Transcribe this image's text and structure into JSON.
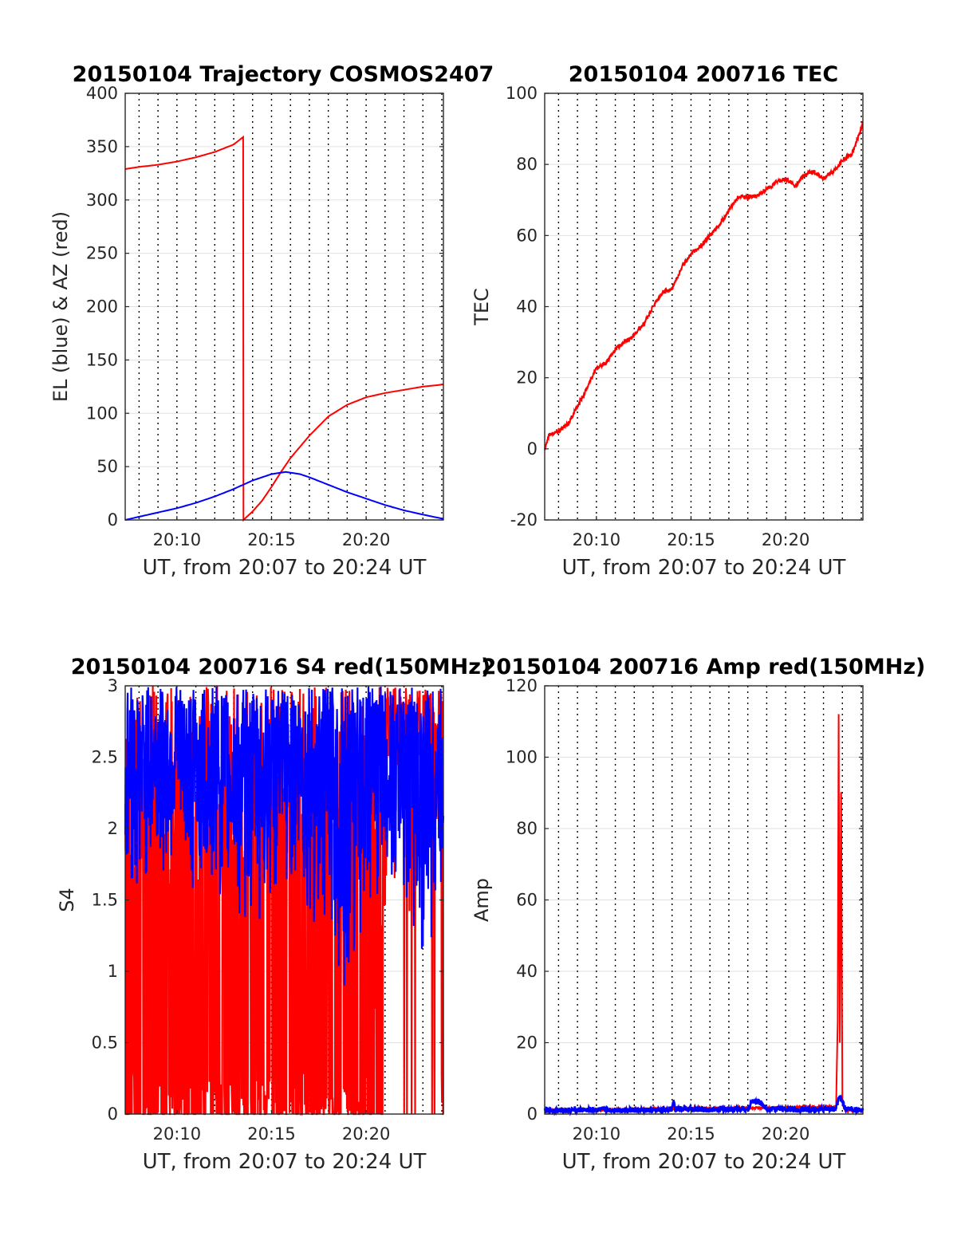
{
  "chart_data": [
    {
      "type": "line",
      "title": "20150104 Trajectory COSMOS2407",
      "xlabel": "UT, from 20:07 to 20:24 UT",
      "ylabel": "EL (blue) & AZ (red)",
      "xlim": [
        "20:07:16",
        "20:24:05"
      ],
      "ylim": [
        0,
        400
      ],
      "yticks": [
        0,
        50,
        100,
        150,
        200,
        250,
        300,
        350,
        400
      ],
      "xticks": [
        "20:10",
        "20:15",
        "20:20"
      ],
      "grid": {
        "x": "dotted, every 1 minute",
        "y": "solid light"
      },
      "series": [
        {
          "color": "#ff0000",
          "x": [
            "20:07:16",
            "20:08",
            "20:09",
            "20:10",
            "20:11",
            "20:12",
            "20:13",
            "20:13:30",
            "20:13:31",
            "20:14",
            "20:14:30",
            "20:15",
            "20:15:30",
            "20:16",
            "20:17",
            "20:18",
            "20:19",
            "20:20",
            "20:21",
            "20:22",
            "20:23",
            "20:24:05"
          ],
          "y": [
            329,
            331,
            333,
            336,
            340,
            345,
            352,
            359,
            0,
            8,
            18,
            31,
            45,
            58,
            79,
            97,
            108,
            115,
            119,
            122,
            125,
            127
          ]
        },
        {
          "color": "#0000ff",
          "x": [
            "20:07:16",
            "20:08",
            "20:09",
            "20:10",
            "20:11",
            "20:12",
            "20:13",
            "20:14",
            "20:15",
            "20:15:45",
            "20:16:30",
            "20:17",
            "20:18",
            "20:19",
            "20:20",
            "20:21",
            "20:22",
            "20:23",
            "20:24:05"
          ],
          "y": [
            0,
            3,
            7,
            11,
            16,
            22,
            29,
            37,
            43,
            45,
            43,
            40,
            33,
            26,
            20,
            14,
            9,
            5,
            1
          ]
        }
      ]
    },
    {
      "type": "line",
      "title": "20150104 200716 TEC",
      "xlabel": "UT, from 20:07 to 20:24 UT",
      "ylabel": "TEC",
      "xlim": [
        "20:07:16",
        "20:24:05"
      ],
      "ylim": [
        -20,
        100
      ],
      "yticks": [
        -20,
        0,
        20,
        40,
        60,
        80,
        100
      ],
      "xticks": [
        "20:10",
        "20:15",
        "20:20"
      ],
      "grid": {
        "x": "dotted, every 1 minute",
        "y": "solid light"
      },
      "series": [
        {
          "color": "#ff0000",
          "x": [
            "20:07:16",
            "20:07:30",
            "20:08",
            "20:08:30",
            "20:09",
            "20:09:30",
            "20:10",
            "20:10:30",
            "20:11",
            "20:12",
            "20:12:30",
            "20:13",
            "20:13:30",
            "20:14",
            "20:14:30",
            "20:15",
            "20:15:30",
            "20:16",
            "20:16:30",
            "20:17",
            "20:17:30",
            "20:18",
            "20:18:30",
            "20:19",
            "20:19:30",
            "20:20",
            "20:20:30",
            "20:21",
            "20:21:30",
            "20:22",
            "20:22:30",
            "20:23",
            "20:23:30",
            "20:24",
            "20:24:05"
          ],
          "y": [
            0,
            4,
            5,
            7,
            12,
            17,
            23,
            24,
            28,
            32,
            35,
            40,
            44,
            45,
            51,
            55,
            57,
            60,
            63,
            67,
            71,
            71,
            71,
            73,
            75,
            76,
            74,
            77,
            78,
            76,
            78,
            81,
            83,
            90,
            92
          ]
        }
      ]
    },
    {
      "type": "line",
      "title": "20150104 200716 S4 red(150MHz)",
      "xlabel": "UT, from 20:07 to 20:24 UT",
      "ylabel": "S4",
      "xlim": [
        "20:07:16",
        "20:24:05"
      ],
      "ylim": [
        0,
        3
      ],
      "yticks": [
        0,
        0.5,
        1,
        1.5,
        2,
        2.5,
        3
      ],
      "xticks": [
        "20:10",
        "20:15",
        "20:20"
      ],
      "grid": {
        "x": "dotted, every 1 minute",
        "y": "solid light"
      },
      "series": [
        {
          "color": "#ff0000",
          "note": "noisy, spanning 0 to 3 through most of the interval, sparse after 20:21",
          "x": [
            "20:07:16",
            "20:08",
            "20:09",
            "20:10",
            "20:11",
            "20:12",
            "20:13",
            "20:14",
            "20:15",
            "20:16",
            "20:17",
            "20:18",
            "20:19",
            "20:20",
            "20:21",
            "20:22",
            "20:23",
            "20:24"
          ],
          "y_min": [
            0,
            0,
            0,
            0,
            0,
            0,
            0,
            0,
            0,
            0,
            0,
            0,
            0,
            0,
            1.4,
            1.5,
            0.7,
            0
          ],
          "y_max": [
            3,
            3,
            3,
            3,
            3,
            3,
            3,
            3,
            3,
            3,
            3,
            3,
            3,
            3,
            3,
            3,
            3,
            3
          ]
        },
        {
          "color": "#0000ff",
          "note": "noisy band",
          "x": [
            "20:07:16",
            "20:08",
            "20:09",
            "20:10",
            "20:11",
            "20:12",
            "20:13",
            "20:14",
            "20:15",
            "20:16",
            "20:17",
            "20:18",
            "20:19",
            "20:20",
            "20:21",
            "20:22",
            "20:23",
            "20:24"
          ],
          "y_min": [
            1.3,
            1.5,
            1.6,
            1.6,
            1.5,
            1.4,
            1.3,
            1.3,
            1.4,
            1.5,
            1.3,
            1.2,
            0.7,
            1.4,
            1.5,
            1.4,
            0.9,
            1.3
          ],
          "y_max": [
            3,
            3,
            3,
            3,
            3,
            3,
            3,
            3,
            3,
            3,
            3,
            3,
            3,
            3,
            3,
            3,
            3,
            3
          ]
        }
      ]
    },
    {
      "type": "line",
      "title": "20150104 200716 Amp red(150MHz)",
      "xlabel": "UT, from 20:07 to 20:24 UT",
      "ylabel": "Amp",
      "xlim": [
        "20:07:16",
        "20:24:05"
      ],
      "ylim": [
        0,
        120
      ],
      "yticks": [
        0,
        20,
        40,
        60,
        80,
        100,
        120
      ],
      "xticks": [
        "20:10",
        "20:15",
        "20:20"
      ],
      "grid": {
        "x": "dotted, every 1 minute",
        "y": "solid light"
      },
      "series": [
        {
          "color": "#ff0000",
          "x": [
            "20:07:16",
            "20:22:40",
            "20:22:45",
            "20:22:48",
            "20:22:52",
            "20:22:56",
            "20:23:00",
            "20:23:04",
            "20:23:08",
            "20:24:05"
          ],
          "y": [
            1,
            2,
            26,
            112,
            20,
            90,
            4,
            2,
            1,
            1
          ]
        },
        {
          "color": "#0000ff",
          "x": [
            "20:07:16",
            "20:10",
            "20:13",
            "20:14:00",
            "20:14:05",
            "20:14:10",
            "20:16",
            "20:18",
            "20:18:15",
            "20:18:40",
            "20:19",
            "20:21",
            "20:22:40",
            "20:22:50",
            "20:23:10",
            "20:24:05"
          ],
          "y": [
            1,
            1.2,
            1,
            1.5,
            4.5,
            1.5,
            1.2,
            1.5,
            3.8,
            3.2,
            1.5,
            1.2,
            1.5,
            5,
            1.5,
            1
          ]
        }
      ]
    }
  ]
}
